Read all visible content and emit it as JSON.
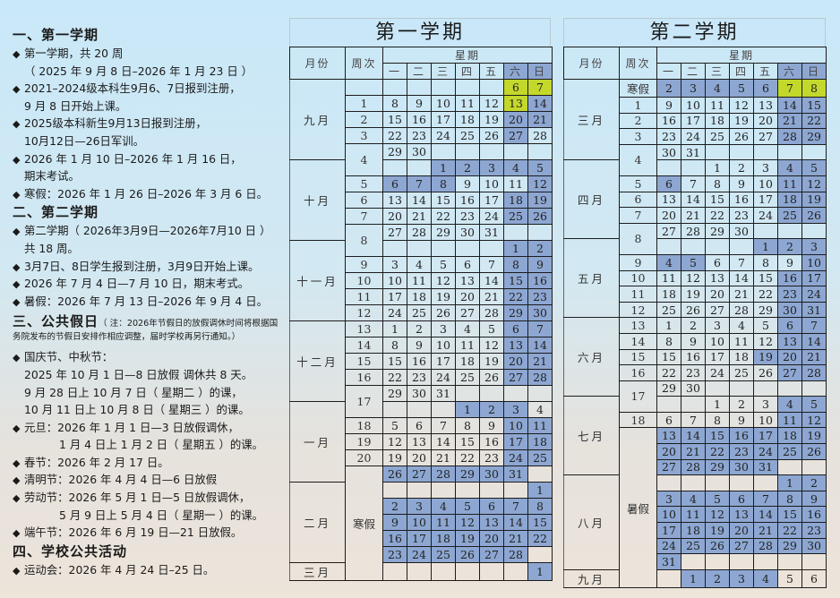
{
  "notes": {
    "sections": [
      {
        "heading": "一、第一学期",
        "items": [
          {
            "lines": [
              "第一学期，共 20 周"
            ]
          },
          {
            "lines": [
              "",
              "（ 2025 年 9 月 8 日–2026 年 1 月 23 日 ）"
            ]
          },
          {
            "lines": [
              "2021–2024级本科生9月6、7日报到注册，",
              "9 月 8 日开始上课。"
            ]
          },
          {
            "lines": [
              "2025级本科新生9月13日报到注册，",
              "10月12日—26日军训。"
            ]
          },
          {
            "lines": [
              "2026 年 1 月 10 日–2026 年 1 月 16 日，",
              "期末考试。"
            ]
          },
          {
            "lines": [
              "寒假：2026 年 1 月 26 日–2026 年 3 月 6 日。"
            ]
          }
        ]
      },
      {
        "heading": "二、第二学期",
        "items": [
          {
            "lines": [
              "第二学期（ 2026年3月9日—2026年7月10 日 ）",
              "共 18 周。"
            ]
          },
          {
            "lines": [
              "3月7日、8日学生报到注册，3月9日开始上课。"
            ]
          },
          {
            "lines": [
              "2026 年 7 月 4 日—7 月 10 日，期末考式。"
            ]
          },
          {
            "lines": [
              "暑假：2026 年 7 月 13 日–2026 年 9 月 4 日。"
            ]
          }
        ]
      },
      {
        "heading": "三、公共假日",
        "note": "（ 注：2026年节假日的放假调休时间将根据国务院发布的节假日安排作相应调整，届时学校再另行通知。）",
        "items": [
          {
            "lines": [
              "国庆节、中秋节：",
              "2025 年 10 月 1 日—8 日放假  调休共 8 天。",
              "9 月 28 日上 10 月 7 日（ 星期二 ）的课，",
              "10 月 11 日上 10 月 8 日（ 星期三 ）的课。"
            ]
          },
          {
            "lines": [
              "元旦：2026 年 1 月 1 日—3 日放假调休，",
              "1 月 4 日上 1 月 2 日（ 星期五 ）的课。"
            ],
            "deep": true
          },
          {
            "lines": [
              "春节：2026 年 2 月 17 日。"
            ]
          },
          {
            "lines": [
              "清明节：2026 年 4 月 4 日—6 日放假"
            ]
          },
          {
            "lines": [
              "劳动节：2026 年 5 月 1 日—5 日放假调休，",
              "5 月 9 日上 5 月 4 日（ 星期一 ）的课。"
            ],
            "deep": true
          },
          {
            "lines": [
              "端午节：2026 年 6 月 19 日—21 日放假。"
            ]
          }
        ]
      },
      {
        "heading": "四、学校公共活动",
        "items": [
          {
            "lines": [
              "运动会：2026 年 4 月 24 日–25 日。"
            ]
          }
        ]
      }
    ],
    "bullet": "◆"
  },
  "colors": {
    "holiday": "#8da7d2",
    "registration": "#c4d82c"
  },
  "legend_codes": {
    "0": "normal",
    "1": "holiday/weekend",
    "2": "registration"
  },
  "tables": [
    {
      "title": "第一学期",
      "month_header": "月份",
      "week_header": "周次",
      "weekday_header": "星期",
      "weekdays": [
        "一",
        "二",
        "三",
        "四",
        "五",
        "六",
        "日"
      ],
      "months": [
        {
          "label": "九月",
          "rows": 5
        },
        {
          "label": "十月",
          "rows": 5
        },
        {
          "label": "十一月",
          "rows": 5
        },
        {
          "label": "十二月",
          "rows": 5
        },
        {
          "label": "一月",
          "rows": 5
        },
        {
          "label": "二月",
          "rows": 5
        },
        {
          "label": "三月",
          "rows": 1
        }
      ],
      "weeks": [
        {
          "label": "",
          "rows": 1
        },
        {
          "label": "1",
          "rows": 1
        },
        {
          "label": "2",
          "rows": 1
        },
        {
          "label": "3",
          "rows": 1
        },
        {
          "label": "4",
          "rows": 2
        },
        {
          "label": "5",
          "rows": 1
        },
        {
          "label": "6",
          "rows": 1
        },
        {
          "label": "7",
          "rows": 1
        },
        {
          "label": "8",
          "rows": 2
        },
        {
          "label": "9",
          "rows": 1
        },
        {
          "label": "10",
          "rows": 1
        },
        {
          "label": "11",
          "rows": 1
        },
        {
          "label": "12",
          "rows": 1
        },
        {
          "label": "13",
          "rows": 1
        },
        {
          "label": "14",
          "rows": 1
        },
        {
          "label": "15",
          "rows": 1
        },
        {
          "label": "16",
          "rows": 1
        },
        {
          "label": "17",
          "rows": 2
        },
        {
          "label": "18",
          "rows": 1
        },
        {
          "label": "19",
          "rows": 1
        },
        {
          "label": "20",
          "rows": 1
        },
        {
          "label": "寒假",
          "rows": 7
        }
      ],
      "days": [
        [
          "",
          "",
          "",
          "",
          "",
          "6",
          "7"
        ],
        [
          "8",
          "9",
          "10",
          "11",
          "12",
          "13",
          "14"
        ],
        [
          "15",
          "16",
          "17",
          "18",
          "19",
          "20",
          "21"
        ],
        [
          "22",
          "23",
          "24",
          "25",
          "26",
          "27",
          "28"
        ],
        [
          "29",
          "30",
          "",
          "",
          "",
          "",
          ""
        ],
        [
          "",
          "",
          "1",
          "2",
          "3",
          "4",
          "5"
        ],
        [
          "6",
          "7",
          "8",
          "9",
          "10",
          "11",
          "12"
        ],
        [
          "13",
          "14",
          "15",
          "16",
          "17",
          "18",
          "19"
        ],
        [
          "20",
          "21",
          "22",
          "23",
          "24",
          "25",
          "26"
        ],
        [
          "27",
          "28",
          "29",
          "30",
          "31",
          "",
          ""
        ],
        [
          "",
          "",
          "",
          "",
          "",
          "1",
          "2"
        ],
        [
          "3",
          "4",
          "5",
          "6",
          "7",
          "8",
          "9"
        ],
        [
          "10",
          "11",
          "12",
          "13",
          "14",
          "15",
          "16"
        ],
        [
          "17",
          "18",
          "19",
          "20",
          "21",
          "22",
          "23"
        ],
        [
          "24",
          "25",
          "26",
          "27",
          "28",
          "29",
          "30"
        ],
        [
          "1",
          "2",
          "3",
          "4",
          "5",
          "6",
          "7"
        ],
        [
          "8",
          "9",
          "10",
          "11",
          "12",
          "13",
          "14"
        ],
        [
          "15",
          "16",
          "17",
          "18",
          "19",
          "20",
          "21"
        ],
        [
          "22",
          "23",
          "24",
          "25",
          "26",
          "27",
          "28"
        ],
        [
          "29",
          "30",
          "31",
          "",
          "",
          "",
          ""
        ],
        [
          "",
          "",
          "",
          "1",
          "2",
          "3",
          "4"
        ],
        [
          "5",
          "6",
          "7",
          "8",
          "9",
          "10",
          "11"
        ],
        [
          "12",
          "13",
          "14",
          "15",
          "16",
          "17",
          "18"
        ],
        [
          "19",
          "20",
          "21",
          "22",
          "23",
          "24",
          "25"
        ],
        [
          "26",
          "27",
          "28",
          "29",
          "30",
          "31",
          ""
        ],
        [
          "",
          "",
          "",
          "",
          "",
          "",
          "1"
        ],
        [
          "2",
          "3",
          "4",
          "5",
          "6",
          "7",
          "8"
        ],
        [
          "9",
          "10",
          "11",
          "12",
          "13",
          "14",
          "15"
        ],
        [
          "16",
          "17",
          "18",
          "19",
          "20",
          "21",
          "22"
        ],
        [
          "23",
          "24",
          "25",
          "26",
          "27",
          "28",
          ""
        ],
        [
          "",
          "",
          "",
          "",
          "",
          "",
          "1"
        ]
      ],
      "states": [
        "0000022",
        "0000021",
        "0000011",
        "0000010",
        "0000000",
        "0011111",
        "1110001",
        "0000011",
        "0000011",
        "0000000",
        "0000011",
        "0000011",
        "0000011",
        "0000011",
        "0000011",
        "0000011",
        "0000011",
        "0000011",
        "0000011",
        "0000000",
        "0001110",
        "0000011",
        "0000011",
        "0000011",
        "1111110",
        "0000001",
        "1111111",
        "1111111",
        "1111111",
        "1111110",
        "0000001"
      ]
    },
    {
      "title": "第二学期",
      "month_header": "月份",
      "week_header": "周次",
      "weekday_header": "星期",
      "weekdays": [
        "一",
        "二",
        "三",
        "四",
        "五",
        "六",
        "日"
      ],
      "months": [
        {
          "label": "三月",
          "rows": 5
        },
        {
          "label": "四月",
          "rows": 5
        },
        {
          "label": "五月",
          "rows": 5
        },
        {
          "label": "六月",
          "rows": 5
        },
        {
          "label": "七月",
          "rows": 5
        },
        {
          "label": "八月",
          "rows": 6
        },
        {
          "label": "九月",
          "rows": 1
        }
      ],
      "weeks": [
        {
          "label": "寒假",
          "rows": 1
        },
        {
          "label": "1",
          "rows": 1
        },
        {
          "label": "2",
          "rows": 1
        },
        {
          "label": "3",
          "rows": 1
        },
        {
          "label": "4",
          "rows": 2
        },
        {
          "label": "5",
          "rows": 1
        },
        {
          "label": "6",
          "rows": 1
        },
        {
          "label": "7",
          "rows": 1
        },
        {
          "label": "8",
          "rows": 2
        },
        {
          "label": "9",
          "rows": 1
        },
        {
          "label": "10",
          "rows": 1
        },
        {
          "label": "11",
          "rows": 1
        },
        {
          "label": "12",
          "rows": 1
        },
        {
          "label": "13",
          "rows": 1
        },
        {
          "label": "14",
          "rows": 1
        },
        {
          "label": "15",
          "rows": 1
        },
        {
          "label": "16",
          "rows": 1
        },
        {
          "label": "17",
          "rows": 2
        },
        {
          "label": "18",
          "rows": 1
        },
        {
          "label": "暑假",
          "rows": 10
        }
      ],
      "days": [
        [
          "2",
          "3",
          "4",
          "5",
          "6",
          "7",
          "8"
        ],
        [
          "9",
          "10",
          "11",
          "12",
          "13",
          "14",
          "15"
        ],
        [
          "16",
          "17",
          "18",
          "19",
          "20",
          "21",
          "22"
        ],
        [
          "23",
          "24",
          "25",
          "26",
          "27",
          "28",
          "29"
        ],
        [
          "30",
          "31",
          "",
          "",
          "",
          "",
          ""
        ],
        [
          "",
          "",
          "1",
          "2",
          "3",
          "4",
          "5"
        ],
        [
          "6",
          "7",
          "8",
          "9",
          "10",
          "11",
          "12"
        ],
        [
          "13",
          "14",
          "15",
          "16",
          "17",
          "18",
          "19"
        ],
        [
          "20",
          "21",
          "22",
          "23",
          "24",
          "25",
          "26"
        ],
        [
          "27",
          "28",
          "29",
          "30",
          "",
          "",
          ""
        ],
        [
          "",
          "",
          "",
          "",
          "1",
          "2",
          "3"
        ],
        [
          "4",
          "5",
          "6",
          "7",
          "8",
          "9",
          "10"
        ],
        [
          "11",
          "12",
          "13",
          "14",
          "15",
          "16",
          "17"
        ],
        [
          "18",
          "19",
          "20",
          "21",
          "22",
          "23",
          "24"
        ],
        [
          "25",
          "26",
          "27",
          "28",
          "29",
          "30",
          "31"
        ],
        [
          "1",
          "2",
          "3",
          "4",
          "5",
          "6",
          "7"
        ],
        [
          "8",
          "9",
          "10",
          "11",
          "12",
          "13",
          "14"
        ],
        [
          "15",
          "16",
          "17",
          "18",
          "19",
          "20",
          "21"
        ],
        [
          "22",
          "23",
          "24",
          "25",
          "26",
          "27",
          "28"
        ],
        [
          "29",
          "30",
          "",
          "",
          "",
          "",
          ""
        ],
        [
          "",
          "",
          "1",
          "2",
          "3",
          "4",
          "5"
        ],
        [
          "6",
          "7",
          "8",
          "9",
          "10",
          "11",
          "12"
        ],
        [
          "13",
          "14",
          "15",
          "16",
          "17",
          "18",
          "19"
        ],
        [
          "20",
          "21",
          "22",
          "23",
          "24",
          "25",
          "26"
        ],
        [
          "27",
          "28",
          "29",
          "30",
          "31",
          "",
          ""
        ],
        [
          "",
          "",
          "",
          "",
          "",
          "1",
          "2"
        ],
        [
          "3",
          "4",
          "5",
          "6",
          "7",
          "8",
          "9"
        ],
        [
          "10",
          "11",
          "12",
          "13",
          "14",
          "15",
          "16"
        ],
        [
          "17",
          "18",
          "19",
          "20",
          "21",
          "22",
          "23"
        ],
        [
          "24",
          "25",
          "26",
          "27",
          "28",
          "29",
          "30"
        ],
        [
          "31",
          "",
          "",
          "",
          "",
          "",
          ""
        ],
        [
          "",
          "1",
          "2",
          "3",
          "4",
          "5",
          "6"
        ]
      ],
      "states": [
        "1111122",
        "0000011",
        "0000011",
        "0000011",
        "0000000",
        "0000011",
        "1000011",
        "0000011",
        "0000011",
        "0000000",
        "0000111",
        "1100001",
        "0000011",
        "0000011",
        "0000011",
        "0000011",
        "0000011",
        "0000111",
        "0000011",
        "0000000",
        "0000011",
        "0000011",
        "1111111",
        "1111111",
        "1111100",
        "0000011",
        "1111111",
        "1111111",
        "1111111",
        "1111111",
        "1000000",
        "0111100"
      ]
    }
  ]
}
